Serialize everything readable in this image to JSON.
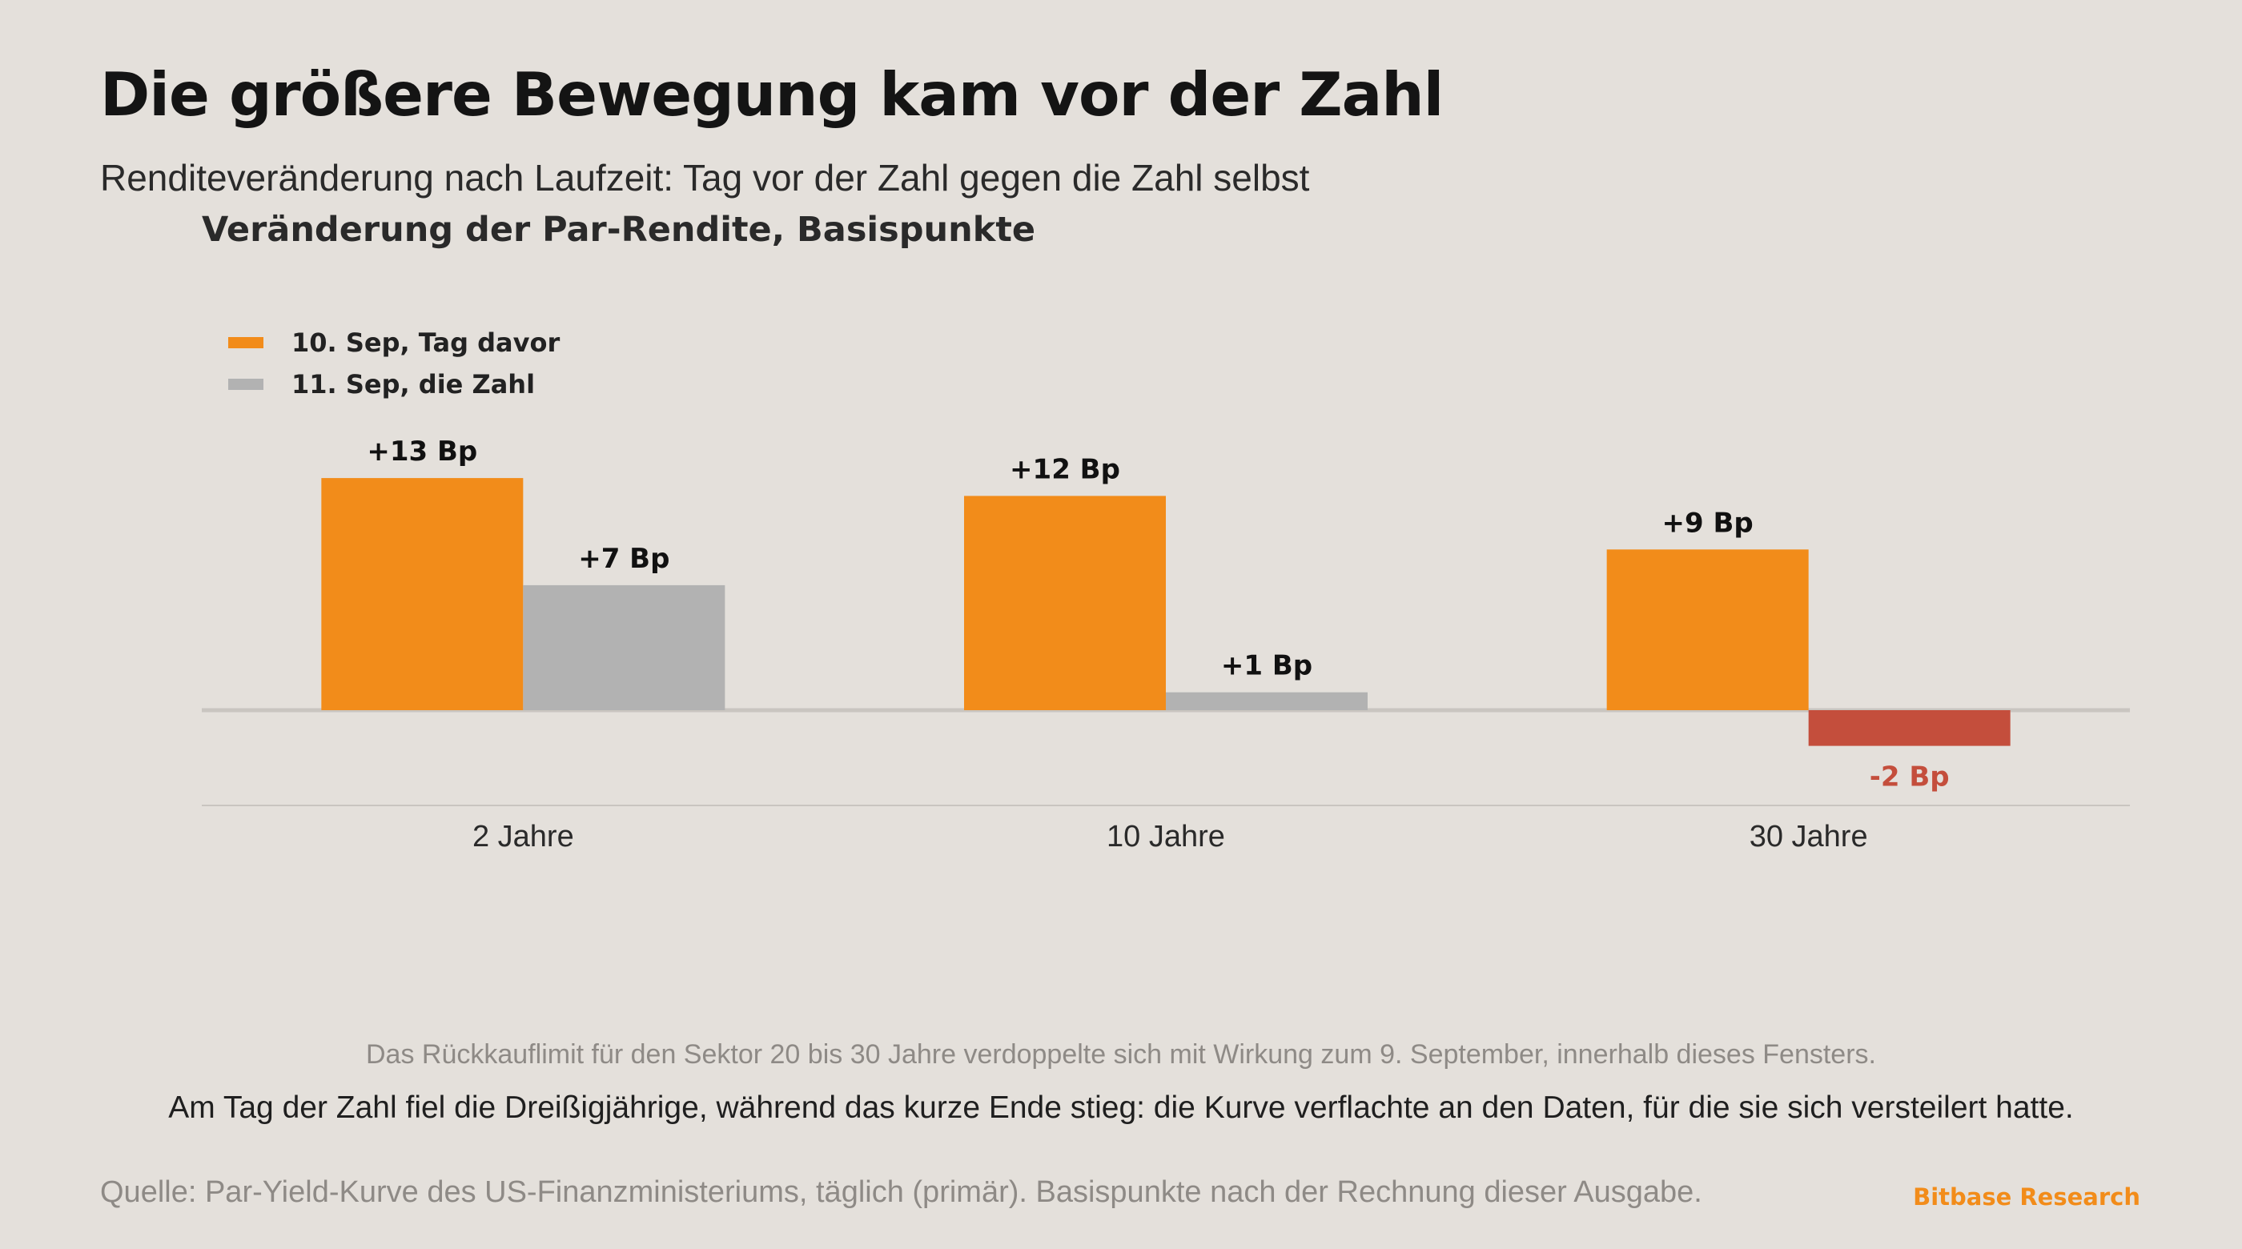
{
  "header": {
    "title": "Die größere Bewegung kam vor der Zahl",
    "subtitle": "Renditeveränderung nach Laufzeit: Tag vor der Zahl gegen die Zahl selbst"
  },
  "colors": {
    "series_before": "#f28c1a",
    "series_day_of": "#b2b2b2",
    "negative": "#c44e3c",
    "brand": "#f28c1a",
    "zero_line": "#c9c5c0",
    "baseline": "#c9c5c0"
  },
  "chart_data": {
    "type": "bar",
    "title": "Veränderung der Par-Rendite, Basispunkte",
    "categories": [
      "2 Jahre",
      "10 Jahre",
      "30 Jahre"
    ],
    "series": [
      {
        "name": "10. Sep, Tag davor",
        "values": [
          13,
          12,
          9
        ],
        "labels": [
          "+13 Bp",
          "+12 Bp",
          "+9 Bp"
        ]
      },
      {
        "name": "11. Sep, die Zahl",
        "values": [
          7,
          1,
          -2
        ],
        "labels": [
          "+7 Bp",
          "+1 Bp",
          "-2 Bp"
        ]
      }
    ],
    "unit": "Bp",
    "ylim": [
      -2,
      13
    ],
    "grid": false,
    "legend_position": "top-left"
  },
  "annotations": {
    "note": "Das Rückkauflimit für den Sektor 20 bis 30 Jahre verdoppelte sich mit Wirkung zum 9. September, innerhalb dieses Fensters.",
    "takeaway": "Am Tag der Zahl fiel die Dreißigjährige, während das kurze Ende stieg: die Kurve verflachte an den Daten, für die sie sich versteilert hatte."
  },
  "footer": {
    "source": "Quelle: Par-Yield-Kurve des US-Finanzministeriums, täglich (primär). Basispunkte nach der Rechnung dieser Ausgabe.",
    "brand": "Bitbase Research"
  }
}
